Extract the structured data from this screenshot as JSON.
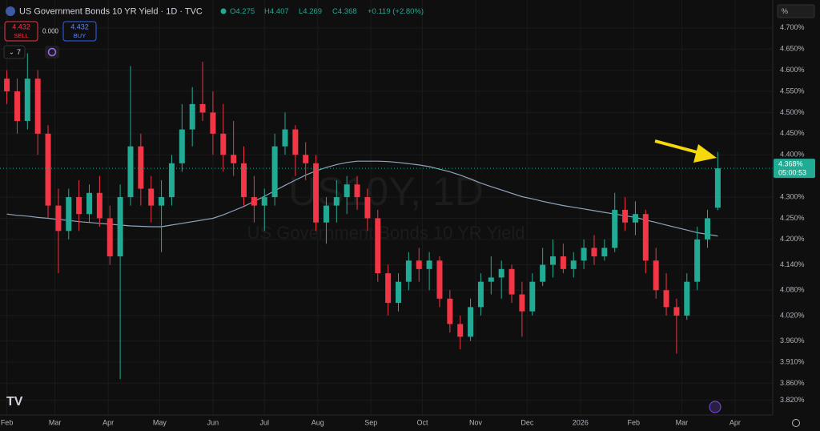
{
  "chart_data": {
    "type": "candlestick",
    "title": "US Government Bonds 10 YR Yield · 1D · TVC",
    "ohlc_header": [
      "O4.275",
      "H4.407",
      "L4.269",
      "C4.368",
      "+0.119 (+2.80%)"
    ],
    "sell": {
      "price": "4.432",
      "label": "SELL"
    },
    "spread": "0.000",
    "buy": {
      "price": "4.432",
      "label": "BUY"
    },
    "indicator_count": "7",
    "axis_unit": "%",
    "last_price_label": "4.368%",
    "countdown": "05:00:53",
    "last_price": 4.368,
    "watermark": {
      "symbol": "US10Y, 1D",
      "description": "US Government Bonds 10 YR Yield"
    },
    "up_color": "#22ab94",
    "down_color": "#f23645",
    "grid": true,
    "x": [
      0,
      6,
      12,
      18,
      24,
      30,
      36,
      42,
      48,
      54,
      60,
      66,
      72,
      78,
      84,
      90,
      96,
      102,
      108,
      114,
      120,
      126,
      132,
      138,
      144,
      150,
      156,
      162,
      168,
      174,
      180,
      186,
      192,
      198,
      204,
      210,
      216,
      222,
      228,
      234,
      240,
      246,
      252,
      258,
      264,
      270,
      276,
      282,
      288,
      294,
      300,
      306,
      312,
      318,
      324,
      330,
      336,
      342,
      348,
      354,
      360,
      366,
      372,
      378,
      384,
      390,
      396,
      402,
      408,
      414
    ],
    "open": [
      4.58,
      4.55,
      4.48,
      4.58,
      4.45,
      4.28,
      4.22,
      4.3,
      4.26,
      4.31,
      4.25,
      4.16,
      4.3,
      4.42,
      4.32,
      4.28,
      4.3,
      4.38,
      4.46,
      4.52,
      4.5,
      4.45,
      4.4,
      4.38,
      4.3,
      4.28,
      4.3,
      4.42,
      4.46,
      4.4,
      4.38,
      4.24,
      4.28,
      4.3,
      4.33,
      4.3,
      4.25,
      4.12,
      4.05,
      4.1,
      4.15,
      4.13,
      4.15,
      4.06,
      4.0,
      3.97,
      4.04,
      4.1,
      4.11,
      4.13,
      4.07,
      4.03,
      4.1,
      4.14,
      4.16,
      4.13,
      4.15,
      4.18,
      4.16,
      4.18,
      4.27,
      4.24,
      4.26,
      4.15,
      4.08,
      4.04,
      4.02,
      4.1,
      4.2,
      4.275
    ],
    "high": [
      4.6,
      4.58,
      4.64,
      4.6,
      4.47,
      4.32,
      4.32,
      4.34,
      4.33,
      4.35,
      4.28,
      4.33,
      4.61,
      4.45,
      4.35,
      4.34,
      4.4,
      4.52,
      4.56,
      4.62,
      4.55,
      4.52,
      4.48,
      4.42,
      4.35,
      4.32,
      4.45,
      4.5,
      4.47,
      4.43,
      4.4,
      4.3,
      4.34,
      4.35,
      4.35,
      4.32,
      4.27,
      4.14,
      4.12,
      4.17,
      4.18,
      4.17,
      4.16,
      4.08,
      4.02,
      4.06,
      4.12,
      4.16,
      4.15,
      4.14,
      4.1,
      4.12,
      4.18,
      4.2,
      4.19,
      4.17,
      4.2,
      4.21,
      4.2,
      4.31,
      4.3,
      4.29,
      4.27,
      4.18,
      4.12,
      4.06,
      4.12,
      4.23,
      4.27,
      4.407
    ],
    "low": [
      4.52,
      4.45,
      4.46,
      4.4,
      4.25,
      4.12,
      4.2,
      4.22,
      4.24,
      4.23,
      4.14,
      3.87,
      4.28,
      4.28,
      4.24,
      4.17,
      4.28,
      4.36,
      4.42,
      4.48,
      4.4,
      4.36,
      4.35,
      4.28,
      4.24,
      4.22,
      4.28,
      4.4,
      4.35,
      4.34,
      4.22,
      4.19,
      4.24,
      4.26,
      4.27,
      4.22,
      4.1,
      4.02,
      4.03,
      4.08,
      4.1,
      4.08,
      4.04,
      3.98,
      3.94,
      3.96,
      4.02,
      4.07,
      4.06,
      4.05,
      3.97,
      4.02,
      4.09,
      4.11,
      4.12,
      4.11,
      4.13,
      4.14,
      4.15,
      4.17,
      4.22,
      4.21,
      4.12,
      4.06,
      4.02,
      3.93,
      4.01,
      4.08,
      4.18,
      4.269
    ],
    "close": [
      4.55,
      4.48,
      4.58,
      4.45,
      4.28,
      4.22,
      4.3,
      4.26,
      4.31,
      4.25,
      4.16,
      4.3,
      4.42,
      4.32,
      4.28,
      4.3,
      4.38,
      4.46,
      4.52,
      4.5,
      4.45,
      4.4,
      4.38,
      4.3,
      4.28,
      4.3,
      4.42,
      4.46,
      4.4,
      4.38,
      4.24,
      4.28,
      4.3,
      4.33,
      4.3,
      4.25,
      4.12,
      4.05,
      4.1,
      4.15,
      4.13,
      4.15,
      4.06,
      4.0,
      3.97,
      4.04,
      4.1,
      4.11,
      4.13,
      4.07,
      4.03,
      4.1,
      4.14,
      4.16,
      4.13,
      4.15,
      4.18,
      4.16,
      4.18,
      4.27,
      4.24,
      4.26,
      4.15,
      4.08,
      4.04,
      4.02,
      4.1,
      4.2,
      4.25,
      4.368
    ],
    "lines": [
      {
        "color": "#8fa5bd",
        "values": [
          4.26,
          4.257,
          4.255,
          4.252,
          4.25,
          4.247,
          4.245,
          4.242,
          4.24,
          4.238,
          4.236,
          4.234,
          4.232,
          4.231,
          4.23,
          4.23,
          4.234,
          4.238,
          4.242,
          4.246,
          4.25,
          4.258,
          4.268,
          4.278,
          4.29,
          4.302,
          4.315,
          4.328,
          4.34,
          4.352,
          4.362,
          4.37,
          4.377,
          4.382,
          4.385,
          4.385,
          4.385,
          4.384,
          4.382,
          4.379,
          4.376,
          4.372,
          4.366,
          4.36,
          4.352,
          4.343,
          4.333,
          4.325,
          4.317,
          4.309,
          4.301,
          4.296,
          4.29,
          4.285,
          4.28,
          4.276,
          4.272,
          4.268,
          4.264,
          4.26,
          4.256,
          4.252,
          4.246,
          4.24,
          4.234,
          4.228,
          4.222,
          4.216,
          4.212,
          4.208
        ]
      }
    ],
    "xlim": [
      -4,
      446
    ],
    "xticks": [
      {
        "value": 0,
        "label": "Feb"
      },
      {
        "value": 28,
        "label": "Mar"
      },
      {
        "value": 59,
        "label": "Apr"
      },
      {
        "value": 89,
        "label": "May"
      },
      {
        "value": 120,
        "label": "Jun"
      },
      {
        "value": 150,
        "label": "Jul"
      },
      {
        "value": 181,
        "label": "Aug"
      },
      {
        "value": 212,
        "label": "Sep"
      },
      {
        "value": 242,
        "label": "Oct"
      },
      {
        "value": 273,
        "label": "Nov"
      },
      {
        "value": 303,
        "label": "Dec"
      },
      {
        "value": 334,
        "label": "2026"
      },
      {
        "value": 365,
        "label": "Feb"
      },
      {
        "value": 393,
        "label": "Mar"
      },
      {
        "value": 424,
        "label": "Apr"
      }
    ],
    "ylim": [
      3.785,
      4.766
    ],
    "yticks": [
      {
        "value": 4.7,
        "label": "4.700%"
      },
      {
        "value": 4.65,
        "label": "4.650%"
      },
      {
        "value": 4.6,
        "label": "4.600%"
      },
      {
        "value": 4.55,
        "label": "4.550%"
      },
      {
        "value": 4.5,
        "label": "4.500%"
      },
      {
        "value": 4.45,
        "label": "4.450%"
      },
      {
        "value": 4.4,
        "label": "4.400%"
      },
      {
        "value": 4.3,
        "label": "4.300%"
      },
      {
        "value": 4.25,
        "label": "4.250%"
      },
      {
        "value": 4.2,
        "label": "4.200%"
      },
      {
        "value": 4.14,
        "label": "4.140%"
      },
      {
        "value": 4.08,
        "label": "4.080%"
      },
      {
        "value": 4.02,
        "label": "4.020%"
      },
      {
        "value": 3.96,
        "label": "3.960%"
      },
      {
        "value": 3.91,
        "label": "3.910%"
      },
      {
        "value": 3.86,
        "label": "3.860%"
      },
      {
        "value": 3.82,
        "label": "3.820%"
      }
    ]
  }
}
